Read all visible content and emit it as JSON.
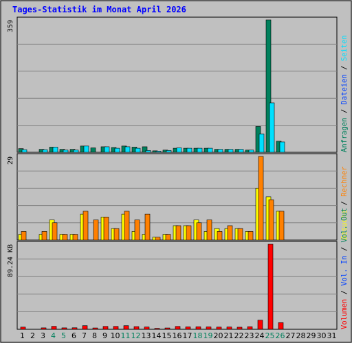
{
  "colors": {
    "background": "#c0c0c0",
    "title": "#0000ff",
    "hits": "#00805c",
    "files": "#0040ff",
    "pages": "#00e0ff",
    "visits": "#ffff00",
    "sites": "#ff8000",
    "kbytes": "#ff0000",
    "weekend": "#00805c",
    "text": "#000000"
  },
  "chart_data": {
    "type": "bar",
    "title": "Tages-Statistik im Monat April 2026",
    "categories": [
      "1",
      "2",
      "3",
      "4",
      "5",
      "6",
      "7",
      "8",
      "9",
      "10",
      "11",
      "12",
      "13",
      "14",
      "15",
      "16",
      "17",
      "18",
      "19",
      "20",
      "21",
      "22",
      "23",
      "24",
      "25",
      "26",
      "27",
      "28",
      "29",
      "30",
      "31"
    ],
    "weekend_days": [
      "4",
      "5",
      "11",
      "12",
      "18",
      "19",
      "25",
      "26"
    ],
    "panels": [
      {
        "max_label": "359",
        "ymax": 359,
        "series": [
          {
            "name": "Anfragen",
            "color": "#00805c",
            "values": [
              10,
              0,
              8,
              14,
              8,
              8,
              17,
              12,
              15,
              13,
              17,
              14,
              15,
              4,
              6,
              11,
              11,
              11,
              11,
              8,
              8,
              8,
              6,
              70,
              359,
              30,
              0,
              0,
              0,
              0,
              0
            ]
          },
          {
            "name": "Dateien",
            "color": "#0040ff",
            "values": [
              0,
              0,
              0,
              0,
              0,
              0,
              0,
              0,
              0,
              0,
              0,
              0,
              0,
              0,
              0,
              0,
              0,
              0,
              0,
              0,
              0,
              0,
              0,
              0,
              0,
              0,
              0,
              0,
              0,
              0,
              0
            ]
          },
          {
            "name": "Seiten",
            "color": "#00e0ff",
            "values": [
              7,
              0,
              7,
              14,
              6,
              6,
              17,
              0,
              15,
              11,
              15,
              11,
              5,
              3,
              5,
              12,
              11,
              11,
              11,
              8,
              8,
              8,
              6,
              50,
              134,
              28,
              0,
              0,
              0,
              0,
              0
            ]
          }
        ],
        "legend": [
          "Anfragen",
          "Dateien",
          "Seiten"
        ]
      },
      {
        "max_label": "29",
        "ymax": 29,
        "series": [
          {
            "name": "Besuche",
            "color": "#ffff00",
            "values": [
              2,
              0,
              2,
              7,
              2,
              2,
              9,
              0,
              8,
              4,
              9,
              3,
              2,
              1,
              2,
              5,
              5,
              7,
              3,
              4,
              4,
              4,
              3,
              18,
              15,
              10,
              0,
              0,
              0,
              0,
              0
            ]
          },
          {
            "name": "Rechner",
            "color": "#ff8000",
            "values": [
              3,
              0,
              3,
              6,
              2,
              2,
              10,
              7,
              8,
              4,
              10,
              7,
              9,
              1,
              2,
              5,
              5,
              6,
              7,
              3,
              5,
              4,
              3,
              29,
              14,
              10,
              0,
              0,
              0,
              0,
              0
            ]
          }
        ],
        "legend": [
          "Besuche",
          "Rechner"
        ]
      },
      {
        "max_label": "89.24 KB",
        "ymax": 89.24,
        "series": [
          {
            "name": "Vol. Out",
            "color": "#00805c",
            "values": [
              0,
              0,
              0,
              0,
              0,
              0,
              0,
              0,
              0,
              0,
              0,
              0,
              0,
              0,
              0,
              0,
              0,
              0,
              0,
              0,
              0,
              0,
              0,
              0,
              0,
              0,
              0,
              0,
              0,
              0,
              0
            ]
          },
          {
            "name": "Vol. In",
            "color": "#0040ff",
            "values": [
              0,
              0,
              0,
              0,
              0,
              0,
              0,
              0,
              0,
              0,
              0,
              0,
              0,
              0,
              0,
              0,
              0,
              0,
              0,
              0,
              0,
              0,
              0,
              0,
              0,
              0,
              0,
              0,
              0,
              0,
              0
            ]
          },
          {
            "name": "Volumen",
            "color": "#ff0000",
            "values": [
              2.3,
              0,
              1.5,
              3.1,
              1.5,
              1.6,
              3.8,
              1.4,
              3,
              3,
              3.8,
              2.8,
              2.4,
              1,
              1.4,
              3,
              2.5,
              2.6,
              2.5,
              2.3,
              2.4,
              2.2,
              2.7,
              9.6,
              89.24,
              7,
              0,
              0,
              0,
              0,
              0
            ]
          }
        ],
        "legend": [
          "Volumen",
          "Vol. In",
          "Vol. Out"
        ]
      }
    ],
    "legend_separator": "/"
  }
}
